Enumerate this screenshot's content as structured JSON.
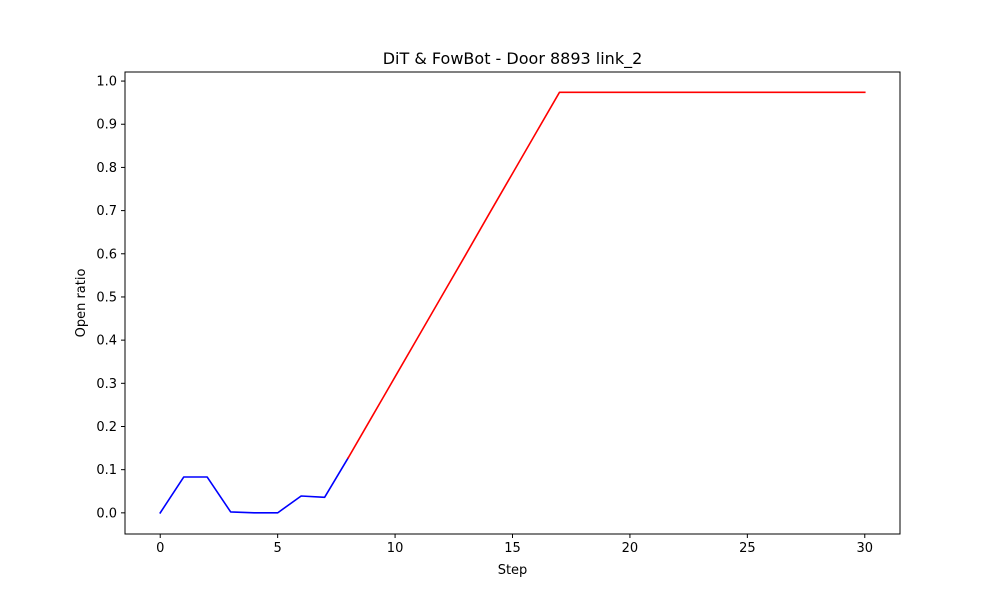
{
  "chart_data": {
    "type": "line",
    "title": "DiT & FowBot - Door 8893 link_2",
    "xlabel": "Step",
    "ylabel": "Open ratio",
    "xlim": [
      -1.5,
      31.5
    ],
    "ylim": [
      -0.049,
      1.021
    ],
    "xticks": [
      0,
      5,
      10,
      15,
      20,
      25,
      30
    ],
    "yticks": [
      0.0,
      0.1,
      0.2,
      0.3,
      0.4,
      0.5,
      0.6,
      0.7,
      0.8,
      0.9,
      1.0
    ],
    "ytick_labels": [
      "0.0",
      "0.1",
      "0.2",
      "0.3",
      "0.4",
      "0.5",
      "0.6",
      "0.7",
      "0.8",
      "0.9",
      "1.0"
    ],
    "grid": false,
    "legend": "none",
    "series": [
      {
        "color": "#0000ff",
        "x": [
          0,
          1,
          2,
          3,
          4,
          5,
          6,
          7,
          8
        ],
        "values": [
          0.0,
          0.083,
          0.083,
          0.002,
          0.0,
          0.0,
          0.039,
          0.036,
          0.127
        ]
      },
      {
        "color": "#ff0000",
        "x": [
          8,
          9,
          10,
          11,
          12,
          13,
          14,
          15,
          16,
          17,
          18,
          19,
          20,
          21,
          22,
          23,
          24,
          25,
          26,
          27,
          28,
          29,
          30
        ],
        "values": [
          0.127,
          0.221,
          0.315,
          0.409,
          0.503,
          0.597,
          0.692,
          0.786,
          0.88,
          0.974,
          0.974,
          0.974,
          0.974,
          0.974,
          0.974,
          0.974,
          0.974,
          0.974,
          0.974,
          0.974,
          0.974,
          0.974,
          0.974
        ]
      }
    ]
  }
}
